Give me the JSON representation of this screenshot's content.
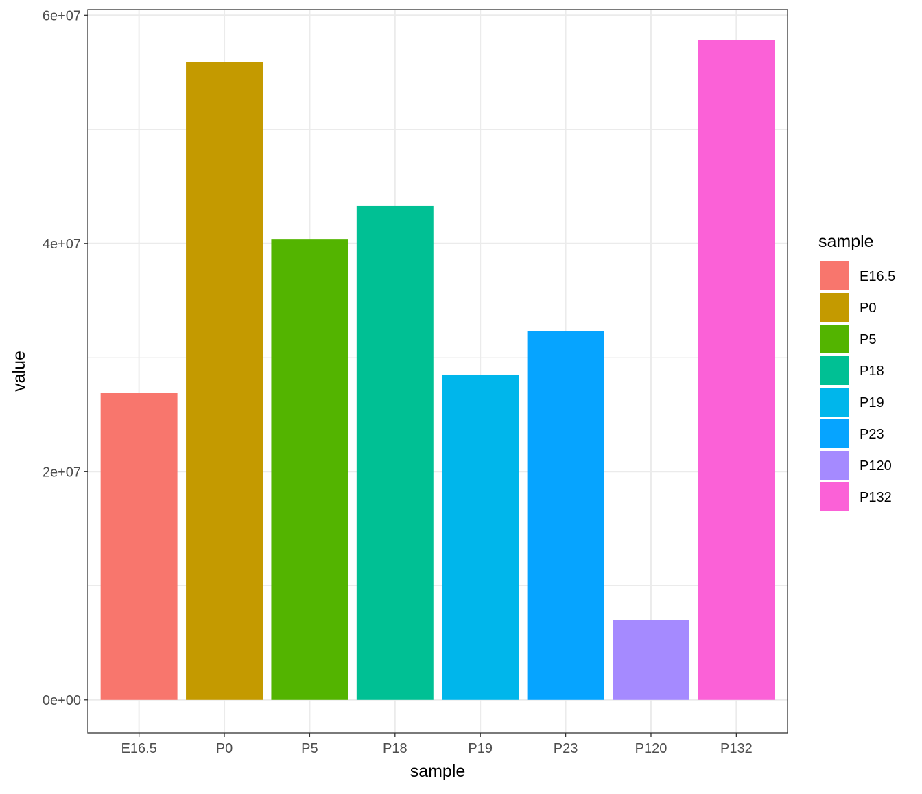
{
  "chart_data": {
    "type": "bar",
    "categories": [
      "E16.5",
      "P0",
      "P5",
      "P18",
      "P19",
      "P23",
      "P120",
      "P132"
    ],
    "values": [
      26900000,
      55900000,
      40400000,
      43300000,
      28500000,
      32300000,
      7000000,
      57800000
    ],
    "colors": [
      "#F8766D",
      "#C49A00",
      "#53B400",
      "#00C094",
      "#00B6EB",
      "#06A4FF",
      "#A58AFF",
      "#FB61D7"
    ],
    "xlabel": "sample",
    "ylabel": "value",
    "ylim": [
      -2900000,
      60500000
    ],
    "yticks": [
      0,
      20000000,
      40000000,
      60000000
    ],
    "ytick_labels": [
      "0e+00",
      "2e+07",
      "4e+07",
      "6e+07"
    ],
    "legend": {
      "title": "sample",
      "position": "right"
    },
    "grid": true,
    "theme": "bw"
  }
}
